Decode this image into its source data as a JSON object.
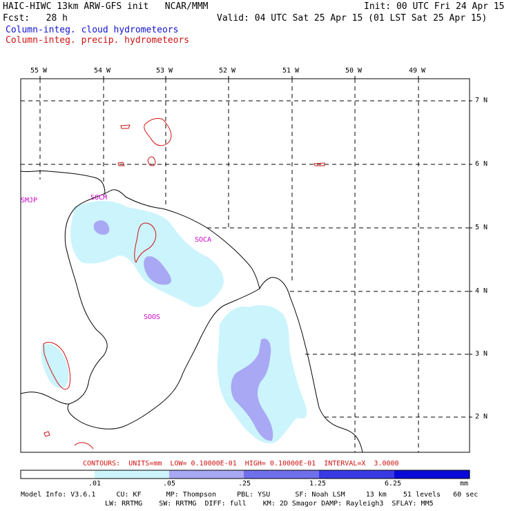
{
  "header": {
    "title_left": "HAIC-HIWC 13km ARW-GFS init   NCAR/MMM",
    "init_right": "Init: 00 UTC Fri 24 Apr 15",
    "fcst_left": "Fcst:   28 h",
    "valid_right": "Valid: 04 UTC Sat 25 Apr 15 (01 LST Sat 25 Apr 15)",
    "field_cloud": "Column-integ. cloud hydrometeors",
    "field_precip": "Column-integ. precip. hydrometeors"
  },
  "map": {
    "lon_labels": [
      "55 W",
      "54 W",
      "53 W",
      "52 W",
      "51 W",
      "50 W",
      "49 W"
    ],
    "lat_labels": [
      "7 N",
      "6 N",
      "5 N",
      "4 N",
      "3 N",
      "2 N"
    ],
    "stations": [
      "SMJP",
      "SOCM",
      "SOCA",
      "SOOS"
    ],
    "colors": {
      "cloud_light": "#ccf4fc",
      "cloud_mid": "#a8a8f4",
      "precip": "#d01010",
      "station": "#cc00cc"
    }
  },
  "contours": "CONTOURS:  UNITS=mm  LOW= 0.10000E-01  HIGH= 0.10000E-01  INTERVAL=X  3.0000",
  "colorbar": {
    "ticks": [
      ".01",
      ".05",
      ".25",
      "1.25",
      "6.25"
    ],
    "units": "mm",
    "colors": [
      "#ffffff",
      "#ccf4fc",
      "#a8a8f4",
      "#7070ec",
      "#3a3ae4",
      "#0a0ad8"
    ]
  },
  "footer": {
    "line1": "Model Info: V3.6.1     CU: KF      MP: Thompson     PBL: YSU      SF: Noah LSM     13 km    51 levels   60 sec",
    "line2": "LW: RRTMG    SW: RRTMG  DIFF: full    KM: 2D Smagor DAMP: Rayleigh3  SFLAY: MM5"
  }
}
